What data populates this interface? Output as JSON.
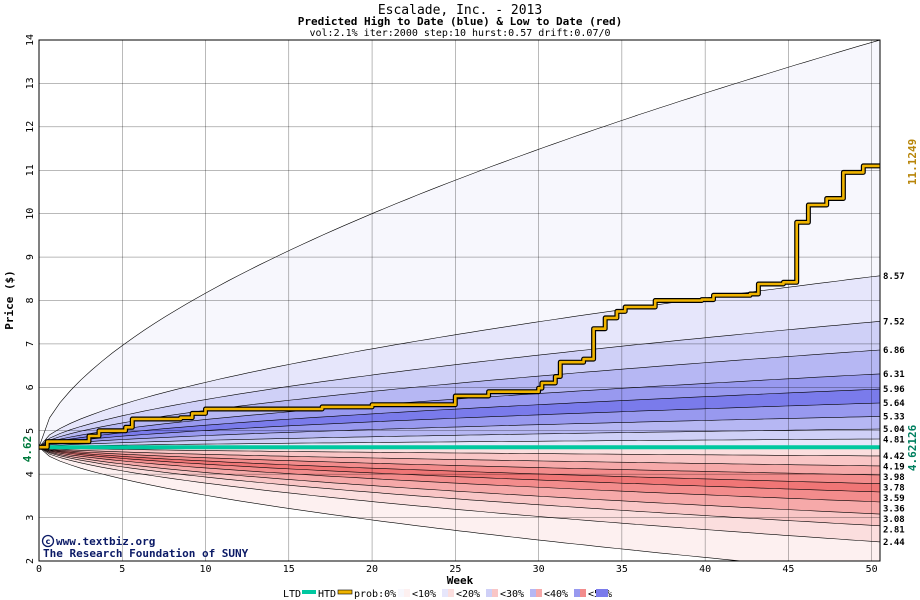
{
  "chart_data": {
    "type": "area",
    "title": "Escalade, Inc. - 2013",
    "subtitle": "Predicted High to Date (blue) &  Low to Date (red)",
    "params": "vol:2.1% iter:2000 step:10 hurst:0.57 drift:0.07/0",
    "xlabel": "Week",
    "ylabel": "Price ($)",
    "xlim": [
      0,
      50.5
    ],
    "ylim": [
      2,
      14
    ],
    "x_ticks": [
      0,
      5,
      10,
      15,
      20,
      25,
      30,
      35,
      40,
      45,
      50
    ],
    "y_ticks": [
      2,
      3,
      4,
      5,
      6,
      7,
      8,
      9,
      10,
      11,
      12,
      13,
      14
    ],
    "grid": true,
    "start_value": 4.62,
    "start_label": "4.62",
    "ltd_value": 4.62126,
    "ltd_label": "4.62126",
    "htd_value": 11.1249,
    "htd_label": "11.1249",
    "high_bands": [
      {
        "prob": "0%",
        "end": 14.0
      },
      {
        "prob": "10%",
        "end": 8.57
      },
      {
        "prob": "20%",
        "end": 7.52
      },
      {
        "prob": "30%",
        "end": 6.86
      },
      {
        "prob": "40%",
        "end": 6.31
      },
      {
        "prob": "50%",
        "end": 5.96
      },
      {
        "prob": "40%",
        "end": 5.64
      },
      {
        "prob": "30%",
        "end": 5.33
      },
      {
        "prob": "20%",
        "end": 5.04
      },
      {
        "prob": "10%",
        "end": 4.81
      }
    ],
    "low_bands": [
      {
        "prob": "0%",
        "end": 1.7
      },
      {
        "prob": "10%",
        "end": 2.44
      },
      {
        "prob": "20%",
        "end": 2.81
      },
      {
        "prob": "30%",
        "end": 3.08
      },
      {
        "prob": "40%",
        "end": 3.36
      },
      {
        "prob": "50%",
        "end": 3.59
      },
      {
        "prob": "40%",
        "end": 3.78
      },
      {
        "prob": "30%",
        "end": 3.98
      },
      {
        "prob": "20%",
        "end": 4.19
      },
      {
        "prob": "10%",
        "end": 4.42
      }
    ],
    "right_labels": [
      "8.57",
      "7.52",
      "6.86",
      "6.31",
      "5.96",
      "5.64",
      "5.33",
      "5.04",
      "4.81",
      "4.42",
      "4.19",
      "3.98",
      "3.78",
      "3.59",
      "3.36",
      "3.08",
      "2.81",
      "2.44"
    ],
    "htd_series": {
      "x": [
        0,
        0.5,
        3,
        3.6,
        5.2,
        5.6,
        8.5,
        9.2,
        10,
        17,
        20,
        25,
        27,
        30,
        30.2,
        31,
        31.3,
        32.7,
        33.3,
        34,
        34.7,
        35.2,
        37,
        39.8,
        40.5,
        42.7,
        43.2,
        44.7,
        45.5,
        46.2,
        47.3,
        48.3,
        49.5,
        50.5
      ],
      "y": [
        4.62,
        4.75,
        4.88,
        5.0,
        5.08,
        5.27,
        5.3,
        5.4,
        5.5,
        5.55,
        5.6,
        5.8,
        5.9,
        5.98,
        6.1,
        6.25,
        6.58,
        6.65,
        7.35,
        7.6,
        7.75,
        7.85,
        8.0,
        8.02,
        8.12,
        8.15,
        8.38,
        8.42,
        9.8,
        10.2,
        10.35,
        10.95,
        11.1,
        11.12
      ]
    },
    "ltd_series": {
      "x": [
        0,
        50.5
      ],
      "y": [
        4.62,
        4.62
      ]
    },
    "colors": {
      "p0": "#f7f7fd",
      "p10_high": "#e6e6fb",
      "p20_high": "#cfd0f7",
      "p30_high": "#b6b7f3",
      "p40_high": "#9899ef",
      "p50_high": "#7a7beb",
      "p0_low": "#fdf0f0",
      "p10_low": "#fbdede",
      "p20_low": "#f9c6c6",
      "p30_low": "#f6a9a9",
      "p40_low": "#f38c8c",
      "p50_low": "#f07676",
      "htd": "#f0b400",
      "ltd": "#00c8a0",
      "start_label": "#007a3d",
      "htd_label": "#b8860b",
      "ltd_label": "#008060"
    }
  },
  "credits": {
    "line1": "www.textbiz.org",
    "line2": "The Research Foundation of SUNY"
  },
  "legend": {
    "ltd": "LTD",
    "htd": "HTD",
    "prob": "prob:0%",
    "p10": "<10%",
    "p20": "<20%",
    "p30": "<30%",
    "p40": "<40%",
    "p50": "<50%"
  }
}
